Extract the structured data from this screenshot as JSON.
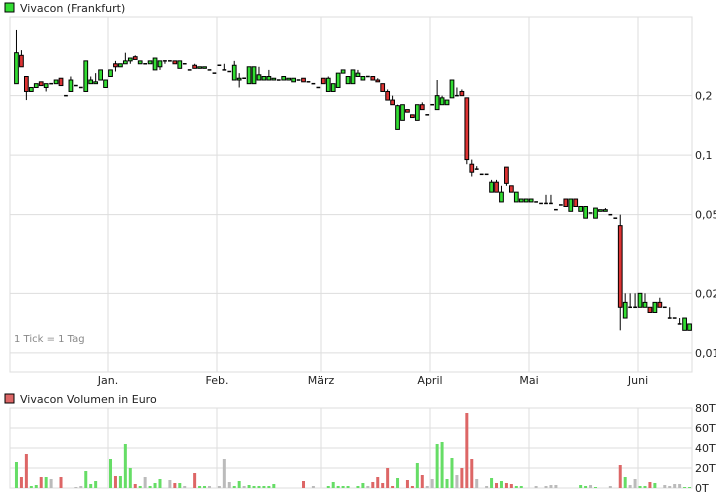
{
  "chart_data": [
    {
      "type": "candlestick",
      "title": "Vivacon (Frankfurt)",
      "yscale": "log",
      "ylim": [
        0.008,
        0.5
      ],
      "yticks": [
        {
          "value": 0.2,
          "label": "0,2"
        },
        {
          "value": 0.1,
          "label": "0,1"
        },
        {
          "value": 0.05,
          "label": "0,05"
        },
        {
          "value": 0.02,
          "label": "0,02"
        },
        {
          "value": 0.01,
          "label": "0,01"
        }
      ],
      "xticks": [
        {
          "label": "Jan.",
          "index": 19
        },
        {
          "label": "Feb.",
          "index": 41
        },
        {
          "label": "März",
          "index": 62
        },
        {
          "label": "April",
          "index": 84
        },
        {
          "label": "Mai",
          "index": 104
        },
        {
          "label": "Juni",
          "index": 126
        }
      ],
      "note": "1 Tick = 1 Tag",
      "grid": true,
      "colors": {
        "up": "#33dd33",
        "down": "#dd3333",
        "flat": "#000000"
      },
      "ohlc": [
        [
          0.23,
          0.43,
          0.23,
          0.33
        ],
        [
          0.32,
          0.34,
          0.28,
          0.28
        ],
        [
          0.25,
          0.25,
          0.19,
          0.21
        ],
        [
          0.21,
          0.22,
          0.21,
          0.22
        ],
        [
          0.22,
          0.23,
          0.22,
          0.23
        ],
        [
          0.235,
          0.235,
          0.225,
          0.225
        ],
        [
          0.22,
          0.23,
          0.21,
          0.23
        ],
        [
          0.23,
          0.23,
          0.23,
          0.23
        ],
        [
          0.23,
          0.24,
          0.23,
          0.24
        ],
        [
          0.245,
          0.245,
          0.225,
          0.225
        ],
        [
          0.2,
          0.2,
          0.2,
          0.2
        ],
        [
          0.21,
          0.25,
          0.21,
          0.24
        ],
        [
          0.225,
          0.225,
          0.225,
          0.225
        ],
        [
          0.22,
          0.22,
          0.22,
          0.22
        ],
        [
          0.21,
          0.3,
          0.21,
          0.3
        ],
        [
          0.23,
          0.25,
          0.23,
          0.24
        ],
        [
          0.23,
          0.26,
          0.23,
          0.235
        ],
        [
          0.24,
          0.27,
          0.24,
          0.27
        ],
        [
          0.22,
          0.24,
          0.22,
          0.24
        ],
        [
          0.25,
          0.27,
          0.25,
          0.27
        ],
        [
          0.29,
          0.3,
          0.265,
          0.28
        ],
        [
          0.28,
          0.29,
          0.28,
          0.29
        ],
        [
          0.29,
          0.33,
          0.29,
          0.3
        ],
        [
          0.3,
          0.31,
          0.29,
          0.31
        ],
        [
          0.315,
          0.32,
          0.305,
          0.305
        ],
        [
          0.29,
          0.3,
          0.29,
          0.3
        ],
        [
          0.29,
          0.29,
          0.29,
          0.29
        ],
        [
          0.29,
          0.3,
          0.29,
          0.3
        ],
        [
          0.27,
          0.31,
          0.27,
          0.31
        ],
        [
          0.28,
          0.3,
          0.27,
          0.3
        ],
        [
          0.3,
          0.3,
          0.29,
          0.3
        ],
        [
          0.3,
          0.3,
          0.3,
          0.3
        ],
        [
          0.3,
          0.3,
          0.29,
          0.29
        ],
        [
          0.275,
          0.3,
          0.275,
          0.3
        ],
        [
          0.29,
          0.29,
          0.29,
          0.29
        ],
        [
          0.27,
          0.27,
          0.27,
          0.27
        ],
        [
          0.285,
          0.29,
          0.275,
          0.275
        ],
        [
          0.275,
          0.28,
          0.275,
          0.28
        ],
        [
          0.275,
          0.28,
          0.275,
          0.28
        ],
        [
          0.27,
          0.27,
          0.27,
          0.27
        ],
        [
          0.26,
          0.26,
          0.26,
          0.26
        ],
        [
          0.285,
          0.285,
          0.285,
          0.285
        ],
        [
          0.27,
          0.29,
          0.27,
          0.27
        ],
        [
          0.265,
          0.265,
          0.265,
          0.265
        ],
        [
          0.24,
          0.3,
          0.24,
          0.285
        ],
        [
          0.24,
          0.26,
          0.22,
          0.245
        ],
        [
          0.245,
          0.245,
          0.245,
          0.245
        ],
        [
          0.23,
          0.28,
          0.23,
          0.28
        ],
        [
          0.23,
          0.28,
          0.23,
          0.28
        ],
        [
          0.24,
          0.28,
          0.24,
          0.255
        ],
        [
          0.24,
          0.25,
          0.24,
          0.25
        ],
        [
          0.24,
          0.27,
          0.24,
          0.25
        ],
        [
          0.24,
          0.245,
          0.24,
          0.245
        ],
        [
          0.24,
          0.24,
          0.24,
          0.24
        ],
        [
          0.24,
          0.25,
          0.24,
          0.25
        ],
        [
          0.24,
          0.245,
          0.24,
          0.245
        ],
        [
          0.235,
          0.245,
          0.235,
          0.245
        ],
        [
          0.24,
          0.24,
          0.24,
          0.24
        ],
        [
          0.245,
          0.245,
          0.235,
          0.235
        ],
        [
          0.235,
          0.235,
          0.235,
          0.235
        ],
        [
          0.23,
          0.23,
          0.23,
          0.23
        ],
        [
          0.22,
          0.22,
          0.22,
          0.22
        ],
        [
          0.245,
          0.245,
          0.23,
          0.23
        ],
        [
          0.21,
          0.25,
          0.21,
          0.245
        ],
        [
          0.21,
          0.23,
          0.21,
          0.23
        ],
        [
          0.22,
          0.26,
          0.22,
          0.26
        ],
        [
          0.26,
          0.27,
          0.26,
          0.27
        ],
        [
          0.23,
          0.25,
          0.23,
          0.25
        ],
        [
          0.23,
          0.27,
          0.23,
          0.27
        ],
        [
          0.25,
          0.27,
          0.25,
          0.26
        ],
        [
          0.24,
          0.25,
          0.24,
          0.25
        ],
        [
          0.25,
          0.25,
          0.25,
          0.25
        ],
        [
          0.25,
          0.25,
          0.24,
          0.24
        ],
        [
          0.24,
          0.245,
          0.235,
          0.235
        ],
        [
          0.23,
          0.23,
          0.21,
          0.21
        ],
        [
          0.21,
          0.215,
          0.19,
          0.19
        ],
        [
          0.19,
          0.2,
          0.18,
          0.18
        ],
        [
          0.135,
          0.18,
          0.135,
          0.178
        ],
        [
          0.15,
          0.18,
          0.15,
          0.18
        ],
        [
          0.17,
          0.17,
          0.165,
          0.165
        ],
        [
          0.16,
          0.16,
          0.155,
          0.155
        ],
        [
          0.15,
          0.18,
          0.15,
          0.18
        ],
        [
          0.18,
          0.185,
          0.17,
          0.17
        ],
        [
          0.16,
          0.16,
          0.16,
          0.16
        ],
        [
          0.18,
          0.18,
          0.18,
          0.18
        ],
        [
          0.17,
          0.24,
          0.17,
          0.2
        ],
        [
          0.18,
          0.2,
          0.18,
          0.195
        ],
        [
          0.18,
          0.19,
          0.18,
          0.19
        ],
        [
          0.195,
          0.24,
          0.195,
          0.24
        ],
        [
          0.2,
          0.22,
          0.2,
          0.2
        ],
        [
          0.21,
          0.215,
          0.2,
          0.2
        ],
        [
          0.195,
          0.195,
          0.09,
          0.095
        ],
        [
          0.09,
          0.095,
          0.078,
          0.082
        ],
        [
          0.085,
          0.088,
          0.085,
          0.085
        ],
        [
          0.08,
          0.08,
          0.08,
          0.08
        ],
        [
          0.08,
          0.08,
          0.08,
          0.08
        ],
        [
          0.065,
          0.075,
          0.065,
          0.073
        ],
        [
          0.073,
          0.075,
          0.065,
          0.065
        ],
        [
          0.058,
          0.07,
          0.058,
          0.065
        ],
        [
          0.087,
          0.087,
          0.07,
          0.072
        ],
        [
          0.07,
          0.07,
          0.065,
          0.065
        ],
        [
          0.058,
          0.065,
          0.058,
          0.065
        ],
        [
          0.058,
          0.06,
          0.058,
          0.06
        ],
        [
          0.058,
          0.06,
          0.058,
          0.06
        ],
        [
          0.058,
          0.06,
          0.058,
          0.06
        ],
        [
          0.058,
          0.058,
          0.058,
          0.058
        ],
        [
          0.057,
          0.057,
          0.057,
          0.057
        ],
        [
          0.057,
          0.063,
          0.057,
          0.057
        ],
        [
          0.057,
          0.063,
          0.057,
          0.057
        ],
        [
          0.053,
          0.053,
          0.053,
          0.053
        ],
        [
          0.056,
          0.056,
          0.056,
          0.056
        ],
        [
          0.06,
          0.06,
          0.055,
          0.055
        ],
        [
          0.052,
          0.06,
          0.052,
          0.06
        ],
        [
          0.06,
          0.06,
          0.055,
          0.055
        ],
        [
          0.052,
          0.055,
          0.052,
          0.055
        ],
        [
          0.048,
          0.055,
          0.048,
          0.055
        ],
        [
          0.051,
          0.051,
          0.051,
          0.051
        ],
        [
          0.048,
          0.054,
          0.048,
          0.054
        ],
        [
          0.052,
          0.053,
          0.052,
          0.053
        ],
        [
          0.052,
          0.054,
          0.052,
          0.053
        ],
        [
          0.05,
          0.05,
          0.05,
          0.05
        ],
        [
          0.048,
          0.048,
          0.048,
          0.048
        ],
        [
          0.044,
          0.05,
          0.013,
          0.017
        ],
        [
          0.015,
          0.02,
          0.015,
          0.018
        ],
        [
          0.017,
          0.02,
          0.017,
          0.017
        ],
        [
          0.017,
          0.02,
          0.017,
          0.017
        ],
        [
          0.017,
          0.02,
          0.017,
          0.02
        ],
        [
          0.017,
          0.02,
          0.017,
          0.018
        ],
        [
          0.017,
          0.017,
          0.016,
          0.016
        ],
        [
          0.016,
          0.018,
          0.016,
          0.018
        ],
        [
          0.018,
          0.019,
          0.017,
          0.017
        ],
        [
          0.017,
          0.017,
          0.017,
          0.017
        ],
        [
          0.015,
          0.017,
          0.015,
          0.015
        ],
        [
          0.015,
          0.015,
          0.015,
          0.015
        ],
        [
          0.014,
          0.015,
          0.014,
          0.014
        ],
        [
          0.013,
          0.015,
          0.013,
          0.015
        ],
        [
          0.013,
          0.014,
          0.013,
          0.014
        ]
      ]
    },
    {
      "type": "bar",
      "title": "Vivacon Volumen in Euro",
      "unit": "T",
      "ylim": [
        0,
        80
      ],
      "yticks": [
        {
          "value": 80,
          "label": "80T"
        },
        {
          "value": 60,
          "label": "60T"
        },
        {
          "value": 40,
          "label": "40T"
        },
        {
          "value": 20,
          "label": "20T"
        },
        {
          "value": 0,
          "label": "0T"
        }
      ],
      "colors": {
        "up": "#66dd66",
        "down": "#dd6666",
        "flat": "#bbbbbb"
      },
      "values": [
        26,
        11,
        34,
        2,
        3,
        11,
        11,
        9,
        0,
        11,
        0,
        0,
        1,
        2,
        17,
        4,
        7,
        0,
        0,
        29,
        12,
        12,
        44,
        20,
        4,
        2,
        11,
        2,
        5,
        9,
        0,
        8,
        5,
        5,
        2,
        0,
        15,
        2,
        2,
        2,
        0,
        2,
        29,
        6,
        2,
        7,
        2,
        3,
        2,
        2,
        2,
        2,
        4,
        0,
        0,
        0,
        0,
        0,
        7,
        0,
        2,
        0,
        0,
        2,
        6,
        2,
        2,
        2,
        0,
        2,
        5,
        2,
        6,
        11,
        5,
        20,
        2,
        10,
        0,
        8,
        2,
        25,
        13,
        2,
        9,
        44,
        46,
        9,
        30,
        13,
        20,
        75,
        29,
        9,
        0,
        2,
        10,
        5,
        7,
        5,
        4,
        2,
        2,
        0,
        0,
        2,
        0,
        2,
        3,
        3,
        0,
        0,
        0,
        0,
        3,
        2,
        3,
        1,
        0,
        0,
        2,
        0,
        23,
        11,
        3,
        9,
        2,
        2,
        6,
        5,
        0,
        3,
        2,
        4,
        4,
        1,
        1
      ]
    }
  ]
}
